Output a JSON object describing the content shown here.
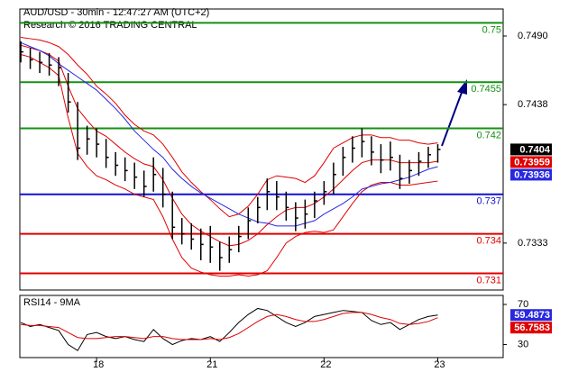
{
  "chart_data": [
    {
      "type": "ohlc",
      "title": "AUD/USD - 30min - 12:47:27 AM (UTC+2)",
      "subtitle": "Research © 2016 TRADING CENTRAL",
      "x": [
        -8,
        -7,
        -6,
        -5,
        -4,
        -3,
        -2,
        -1,
        0,
        1,
        2,
        3,
        4,
        5,
        6,
        7,
        8,
        9,
        10,
        11,
        12,
        13,
        14,
        15,
        16,
        17,
        18,
        19,
        20,
        21,
        22,
        23,
        24,
        25,
        26,
        27,
        28,
        29,
        30,
        31,
        32,
        33,
        34,
        35,
        36
      ],
      "xlim": [
        -8.1,
        42.9
      ],
      "xticks": [
        {
          "value": 0,
          "label": "18"
        },
        {
          "value": 12,
          "label": "21"
        },
        {
          "value": 24,
          "label": "22"
        },
        {
          "value": 36,
          "label": "23"
        }
      ],
      "ylim": [
        0.72974,
        0.75105
      ],
      "yticks": [
        {
          "value": 0.749,
          "label": "0.7490"
        },
        0.7438,
        0.7333
      ],
      "bars": {
        "color": "#000000",
        "high": [
          0.7486,
          0.7481,
          0.7478,
          0.7477,
          0.7474,
          0.7462,
          0.744,
          0.7422,
          0.742,
          0.7412,
          0.7402,
          0.7398,
          0.7394,
          0.7388,
          0.7398,
          0.739,
          0.7372,
          0.7352,
          0.7348,
          0.7344,
          0.7346,
          0.7334,
          0.7338,
          0.7346,
          0.736,
          0.7368,
          0.7382,
          0.738,
          0.7372,
          0.7364,
          0.7366,
          0.7372,
          0.738,
          0.7394,
          0.7406,
          0.7414,
          0.742,
          0.7414,
          0.7408,
          0.741,
          0.74,
          0.7396,
          0.7402,
          0.7406,
          0.7408
        ],
        "low": [
          0.747,
          0.7465,
          0.7462,
          0.746,
          0.7452,
          0.7432,
          0.7396,
          0.74,
          0.7398,
          0.739,
          0.7384,
          0.738,
          0.7374,
          0.7368,
          0.7372,
          0.736,
          0.7336,
          0.7332,
          0.7328,
          0.732,
          0.7318,
          0.7312,
          0.7318,
          0.7326,
          0.7336,
          0.7348,
          0.7358,
          0.7358,
          0.735,
          0.7342,
          0.7344,
          0.7352,
          0.7362,
          0.737,
          0.7384,
          0.7394,
          0.7398,
          0.7392,
          0.7386,
          0.7388,
          0.7374,
          0.7378,
          0.7384,
          0.739,
          0.7394
        ],
        "close": [
          0.7478,
          0.7472,
          0.747,
          0.7468,
          0.7466,
          0.744,
          0.7405,
          0.7412,
          0.7408,
          0.7398,
          0.7392,
          0.7388,
          0.7383,
          0.7376,
          0.7385,
          0.737,
          0.7345,
          0.734,
          0.7336,
          0.7332,
          0.733,
          0.7322,
          0.7328,
          0.7338,
          0.735,
          0.736,
          0.7372,
          0.7368,
          0.736,
          0.7352,
          0.7355,
          0.7365,
          0.7372,
          0.7385,
          0.7398,
          0.7405,
          0.741,
          0.7402,
          0.7396,
          0.7398,
          0.7382,
          0.7388,
          0.7395,
          0.74,
          0.7404
        ]
      },
      "lines": [
        {
          "color": "#e00000",
          "values": [
            0.7489,
            0.7488,
            0.7487,
            0.7485,
            0.7482,
            0.7476,
            0.7468,
            0.7461,
            0.7452,
            0.7446,
            0.7439,
            0.743,
            0.7423,
            0.7418,
            0.7415,
            0.7408,
            0.7398,
            0.7387,
            0.7379,
            0.7372,
            0.7366,
            0.7359,
            0.7353,
            0.7355,
            0.7361,
            0.737,
            0.7381,
            0.7384,
            0.7383,
            0.7382,
            0.7379,
            0.7384,
            0.7394,
            0.7405,
            0.7409,
            0.7413,
            0.7415,
            0.7415,
            0.7413,
            0.7413,
            0.7411,
            0.7411,
            0.7409,
            0.7408,
            0.7409
          ]
        },
        {
          "color": "#e00000",
          "values": [
            0.7476,
            0.7474,
            0.747,
            0.7466,
            0.746,
            0.7428,
            0.7401,
            0.7391,
            0.7384,
            0.7381,
            0.7377,
            0.7374,
            0.737,
            0.7368,
            0.7366,
            0.7353,
            0.7336,
            0.7322,
            0.7314,
            0.7311,
            0.7309,
            0.7308,
            0.7308,
            0.7309,
            0.7308,
            0.7309,
            0.7312,
            0.7322,
            0.7333,
            0.7338,
            0.7341,
            0.7342,
            0.7341,
            0.7343,
            0.7353,
            0.7363,
            0.7372,
            0.7377,
            0.7379,
            0.7379,
            0.7377,
            0.7377,
            0.7378,
            0.7379,
            0.738
          ]
        },
        {
          "color": "#e00000",
          "values": [
            0.7483,
            0.7481,
            0.7479,
            0.7476,
            0.7471,
            0.7452,
            0.7435,
            0.7426,
            0.7418,
            0.7414,
            0.7408,
            0.7402,
            0.7397,
            0.7393,
            0.7391,
            0.7381,
            0.7367,
            0.7355,
            0.7347,
            0.7342,
            0.7338,
            0.7334,
            0.7331,
            0.7332,
            0.7335,
            0.734,
            0.7347,
            0.7353,
            0.7358,
            0.736,
            0.736,
            0.7363,
            0.7368,
            0.7374,
            0.7381,
            0.7388,
            0.7394,
            0.7396,
            0.7396,
            0.7396,
            0.7394,
            0.7394,
            0.7394,
            0.7394,
            0.7395
          ]
        },
        {
          "color": "#2828e0",
          "values": [
            0.7485,
            0.7482,
            0.7479,
            0.7475,
            0.7469,
            0.7464,
            0.7459,
            0.7454,
            0.7449,
            0.7442,
            0.7435,
            0.7427,
            0.7418,
            0.7411,
            0.7404,
            0.7398,
            0.7389,
            0.7382,
            0.7376,
            0.7371,
            0.7367,
            0.7363,
            0.7359,
            0.7355,
            0.7352,
            0.7349,
            0.7348,
            0.7346,
            0.7346,
            0.7346,
            0.7348,
            0.735,
            0.7355,
            0.7359,
            0.7363,
            0.7368,
            0.7374,
            0.7376,
            0.7378,
            0.7379,
            0.7381,
            0.7383,
            0.7386,
            0.7389,
            0.7391
          ]
        }
      ],
      "levels": [
        {
          "value": 0.75,
          "color": "#139013"
        },
        {
          "value": 0.7455,
          "color": "#139013"
        },
        {
          "value": 0.742,
          "color": "#139013"
        },
        {
          "value": 0.737,
          "color": "#1010d0"
        },
        {
          "value": 0.734,
          "color": "#e00000"
        },
        {
          "value": 0.731,
          "color": "#e00000"
        }
      ],
      "markers": [
        {
          "value": 0.7404,
          "color": "#000000"
        },
        {
          "value": 0.73959,
          "color": "#e00000"
        },
        {
          "value": 0.73936,
          "color": "#2828e0"
        }
      ]
    },
    {
      "type": "line",
      "title": "RSI14 - 9MA",
      "ylim": [
        17,
        79
      ],
      "yticks": [
        70,
        30
      ],
      "lines": [
        {
          "color": "#000000",
          "values": [
            52,
            48,
            50,
            47,
            44,
            30,
            24,
            40,
            42,
            38,
            36,
            38,
            35,
            33,
            45,
            36,
            30,
            34,
            36,
            35,
            38,
            33,
            42,
            52,
            60,
            66,
            64,
            58,
            52,
            48,
            52,
            58,
            60,
            62,
            64,
            63,
            62,
            54,
            50,
            52,
            45,
            50,
            55,
            58,
            59.5
          ]
        },
        {
          "color": "#e00000",
          "values": [
            50,
            49,
            49,
            48,
            47,
            42,
            37,
            36,
            36,
            37,
            38,
            38,
            37,
            36,
            38,
            38,
            36,
            35,
            35,
            35,
            36,
            35,
            37,
            41,
            47,
            53,
            58,
            60,
            58,
            55,
            53,
            53,
            55,
            58,
            61,
            62,
            62,
            60,
            57,
            55,
            51,
            50,
            51,
            53,
            56.8
          ]
        }
      ],
      "markers": [
        {
          "value": 59.4873,
          "color": "#2828e0"
        },
        {
          "value": 56.7583,
          "color": "#e00000"
        }
      ]
    }
  ]
}
